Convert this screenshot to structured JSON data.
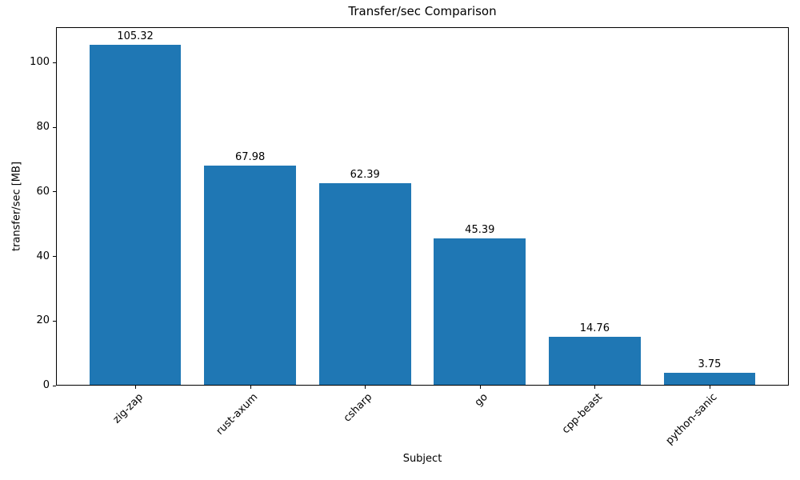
{
  "figure": {
    "title": "Transfer/sec Comparison",
    "xlabel": "Subject",
    "ylabel": "transfer/sec [MB]"
  },
  "chart_data": {
    "type": "bar",
    "categories": [
      "zig-zap",
      "rust-axum",
      "csharp",
      "go",
      "cpp-beast",
      "python-sanic"
    ],
    "values": [
      105.32,
      67.98,
      62.39,
      45.39,
      14.76,
      3.75
    ],
    "title": "Transfer/sec Comparison",
    "xlabel": "Subject",
    "ylabel": "transfer/sec [MB]",
    "ylim": [
      0,
      111
    ],
    "yticks": [
      0,
      20,
      40,
      60,
      80,
      100
    ],
    "bar_color": "#1f77b4",
    "text_color": "#000000",
    "grid": false,
    "bar_value_decimals": 2,
    "xtick_rotation_deg": 45,
    "legend_position": "none"
  }
}
